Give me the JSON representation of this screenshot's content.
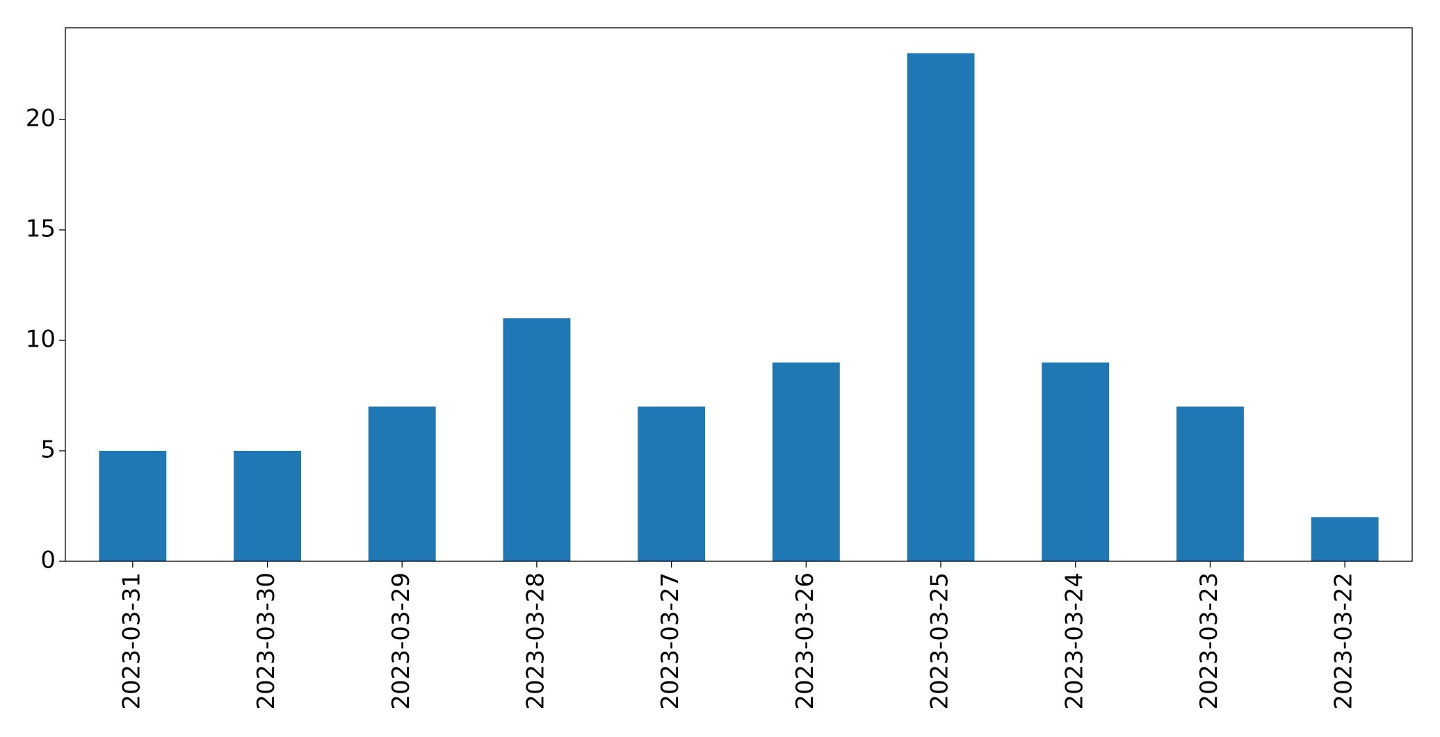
{
  "chart_data": {
    "type": "bar",
    "categories": [
      "2023-03-31",
      "2023-03-30",
      "2023-03-29",
      "2023-03-28",
      "2023-03-27",
      "2023-03-26",
      "2023-03-25",
      "2023-03-24",
      "2023-03-23",
      "2023-03-22"
    ],
    "values": [
      5,
      5,
      7,
      11,
      7,
      9,
      23,
      9,
      7,
      2
    ],
    "color": "#1f77b4",
    "ylim": [
      0,
      24.15
    ],
    "yticks": [
      0,
      5,
      10,
      15,
      20
    ],
    "grid": false
  }
}
